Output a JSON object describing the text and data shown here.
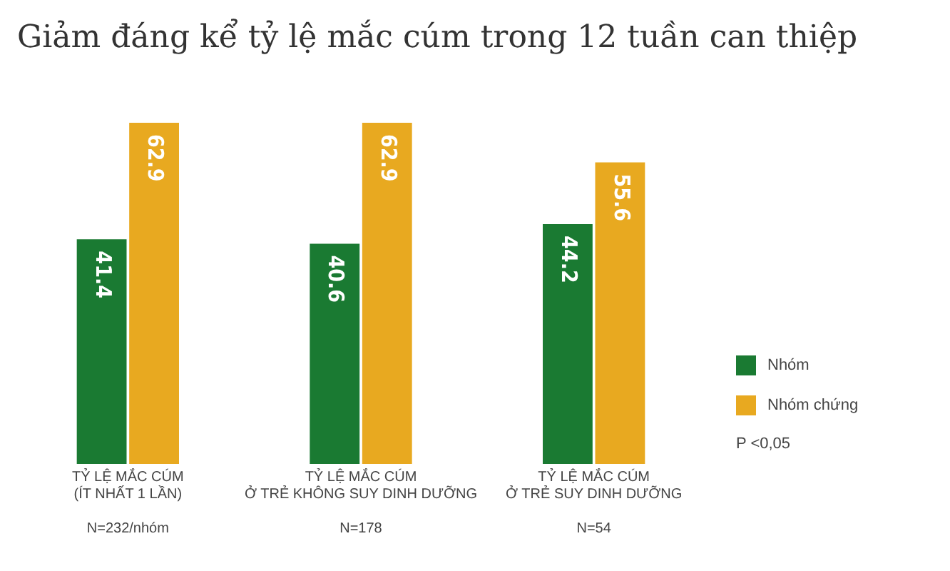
{
  "chart_data": {
    "type": "bar",
    "title": "Giảm đáng kể tỷ lệ mắc cúm trong 12 tuần can thiệp",
    "categories": [
      "TỶ LỆ MẮC CÚM\n(ÍT NHẤT 1 LẦN)\n\nN=232/nhóm",
      "TỶ LỆ MẮC CÚM\nỞ TRẺ KHÔNG SUY DINH DƯỠNG\n\nN=178",
      "TỶ LỆ MẮC CÚM\nỞ TRẺ SUY DINH DƯỠNG\n\nN=54"
    ],
    "series": [
      {
        "name": "Nhóm",
        "color": "#1a7a32",
        "values": [
          41.4,
          40.6,
          44.2
        ]
      },
      {
        "name": "Nhóm chứng",
        "color": "#e8a920",
        "values": [
          62.9,
          62.9,
          55.6
        ]
      }
    ],
    "data_labels": true,
    "tick_labels": "x",
    "grid": false,
    "legend": "right",
    "annotations": [
      "P <0,05"
    ]
  }
}
